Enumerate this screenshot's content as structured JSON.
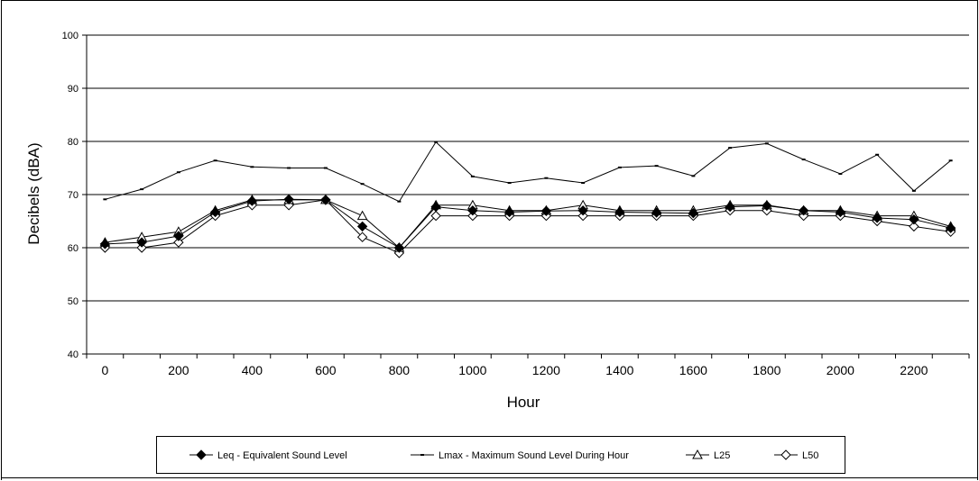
{
  "chart_data": {
    "type": "line",
    "title": "",
    "xlabel": "Hour",
    "ylabel": "Decibels (dBA)",
    "ylim": [
      40,
      100
    ],
    "yticks": [
      40,
      50,
      60,
      70,
      80,
      90,
      100
    ],
    "xlim": [
      -50,
      2350
    ],
    "xticks": [
      0,
      200,
      400,
      600,
      800,
      1000,
      1200,
      1400,
      1600,
      1800,
      2000,
      2200
    ],
    "grid": "horizontal major gridlines",
    "legend_position": "bottom",
    "x": [
      0,
      100,
      200,
      300,
      400,
      500,
      600,
      700,
      800,
      900,
      1000,
      1100,
      1200,
      1300,
      1400,
      1500,
      1600,
      1700,
      1800,
      1900,
      2000,
      2100,
      2200,
      2300
    ],
    "series": [
      {
        "name": "Leq - Equivalent Sound Level",
        "marker": "diamond-filled",
        "values": [
          60.7,
          61.0,
          62.2,
          66.7,
          68.8,
          69.1,
          69.0,
          64.0,
          60.0,
          67.7,
          67.0,
          66.7,
          66.9,
          67.0,
          66.7,
          66.6,
          66.5,
          67.7,
          67.9,
          67.0,
          66.7,
          65.6,
          65.3,
          63.7
        ]
      },
      {
        "name": "Lmax - Maximum Sound Level During Hour",
        "marker": "dash",
        "values": [
          69.1,
          71.0,
          74.2,
          76.4,
          75.2,
          75.0,
          75.0,
          72.0,
          68.7,
          79.9,
          73.4,
          72.2,
          73.1,
          72.2,
          75.1,
          75.4,
          73.5,
          78.8,
          79.6,
          76.6,
          73.9,
          77.5,
          70.7,
          76.4
        ]
      },
      {
        "name": "L25",
        "marker": "triangle-open",
        "values": [
          61.0,
          62.0,
          63.0,
          67.0,
          69.0,
          69.0,
          69.0,
          66.0,
          60.0,
          68.0,
          68.0,
          67.0,
          67.0,
          68.0,
          67.0,
          67.0,
          67.0,
          68.0,
          68.0,
          67.0,
          67.0,
          66.0,
          66.0,
          64.0
        ]
      },
      {
        "name": "L50",
        "marker": "diamond-open",
        "values": [
          60.0,
          60.0,
          61.0,
          66.0,
          68.0,
          68.0,
          69.0,
          62.0,
          59.0,
          66.0,
          66.0,
          66.0,
          66.0,
          66.0,
          66.0,
          66.0,
          66.0,
          67.0,
          67.0,
          66.0,
          66.0,
          65.0,
          64.0,
          63.0
        ]
      }
    ]
  }
}
